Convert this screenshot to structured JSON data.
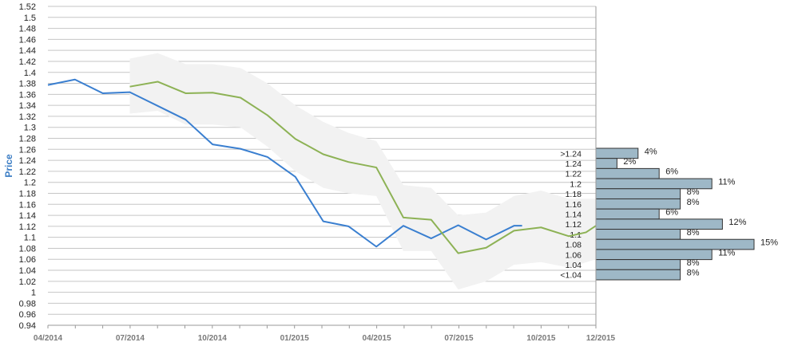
{
  "chart_data": {
    "type": "line",
    "ylabel": "Price",
    "ylim": [
      0.94,
      1.52
    ],
    "y_ticks": [
      "0.94",
      "0.96",
      "0.98",
      "1",
      "1.02",
      "1.04",
      "1.06",
      "1.08",
      "1.1",
      "1.12",
      "1.14",
      "1.16",
      "1.18",
      "1.2",
      "1.22",
      "1.24",
      "1.26",
      "1.28",
      "1.3",
      "1.32",
      "1.34",
      "1.36",
      "1.38",
      "1.4",
      "1.42",
      "1.44",
      "1.46",
      "1.48",
      "1.5",
      "1.52"
    ],
    "x_ticks": [
      "04/2014",
      "07/2014",
      "10/2014",
      "01/2015",
      "04/2015",
      "07/2015",
      "10/2015",
      "12/2015"
    ],
    "x_range": [
      "2014-04",
      "2015-12"
    ],
    "series": [
      {
        "color": "#3a7fd0",
        "points": [
          [
            "2014-04",
            1.377
          ],
          [
            "2014-05",
            1.387
          ],
          [
            "2014-06",
            1.362
          ],
          [
            "2014-07",
            1.364
          ],
          [
            "2014-08",
            1.339
          ],
          [
            "2014-09",
            1.314
          ],
          [
            "2014-10",
            1.269
          ],
          [
            "2014-11",
            1.261
          ],
          [
            "2014-12",
            1.246
          ],
          [
            "2015-01",
            1.21
          ],
          [
            "2015-02",
            1.129
          ],
          [
            "2015-03",
            1.12
          ],
          [
            "2015-04",
            1.083
          ],
          [
            "2015-05",
            1.121
          ],
          [
            "2015-06",
            1.098
          ],
          [
            "2015-07",
            1.122
          ],
          [
            "2015-08",
            1.096
          ],
          [
            "2015-09",
            1.121
          ],
          [
            "2015-09-10",
            1.121
          ]
        ]
      },
      {
        "color": "#8db255",
        "points": [
          [
            "2014-07",
            1.374
          ],
          [
            "2014-08",
            1.383
          ],
          [
            "2014-09",
            1.362
          ],
          [
            "2014-10",
            1.363
          ],
          [
            "2014-11",
            1.354
          ],
          [
            "2014-12",
            1.322
          ],
          [
            "2015-01",
            1.279
          ],
          [
            "2015-02",
            1.251
          ],
          [
            "2015-03",
            1.237
          ],
          [
            "2015-04",
            1.227
          ],
          [
            "2015-05",
            1.136
          ],
          [
            "2015-06",
            1.132
          ],
          [
            "2015-07",
            1.071
          ],
          [
            "2015-08",
            1.081
          ],
          [
            "2015-09",
            1.112
          ],
          [
            "2015-10",
            1.118
          ],
          [
            "2015-11",
            1.102
          ],
          [
            "2015-11-20",
            1.109
          ],
          [
            "2015-12",
            1.121
          ]
        ]
      }
    ],
    "band": {
      "color": "#f2f2f2",
      "upper": [
        [
          "2014-07",
          1.425
        ],
        [
          "2014-08",
          1.435
        ],
        [
          "2014-09",
          1.415
        ],
        [
          "2014-10",
          1.415
        ],
        [
          "2014-11",
          1.408
        ],
        [
          "2014-12",
          1.38
        ],
        [
          "2015-01",
          1.34
        ],
        [
          "2015-02",
          1.31
        ],
        [
          "2015-03",
          1.29
        ],
        [
          "2015-04",
          1.275
        ],
        [
          "2015-05",
          1.195
        ],
        [
          "2015-06",
          1.19
        ],
        [
          "2015-07",
          1.14
        ],
        [
          "2015-08",
          1.145
        ],
        [
          "2015-09",
          1.175
        ],
        [
          "2015-10",
          1.185
        ],
        [
          "2015-11",
          1.17
        ],
        [
          "2015-12",
          1.17
        ]
      ],
      "lower": [
        [
          "2014-07",
          1.325
        ],
        [
          "2014-08",
          1.33
        ],
        [
          "2014-09",
          1.305
        ],
        [
          "2014-10",
          1.305
        ],
        [
          "2014-11",
          1.3
        ],
        [
          "2014-12",
          1.265
        ],
        [
          "2015-01",
          1.22
        ],
        [
          "2015-02",
          1.19
        ],
        [
          "2015-03",
          1.18
        ],
        [
          "2015-04",
          1.175
        ],
        [
          "2015-05",
          1.075
        ],
        [
          "2015-06",
          1.075
        ],
        [
          "2015-07",
          1.005
        ],
        [
          "2015-08",
          1.02
        ],
        [
          "2015-09",
          1.05
        ],
        [
          "2015-10",
          1.055
        ],
        [
          "2015-11",
          1.045
        ],
        [
          "2015-12",
          1.06
        ]
      ]
    },
    "histogram": {
      "color": "#9eb8c7",
      "bins": [
        {
          "label": ">1.24",
          "pct": "4%",
          "value": 4
        },
        {
          "label": "1.24",
          "pct": "2%",
          "value": 2
        },
        {
          "label": "1.22",
          "pct": "6%",
          "value": 6
        },
        {
          "label": "1.2",
          "pct": "11%",
          "value": 11
        },
        {
          "label": "1.18",
          "pct": "8%",
          "value": 8
        },
        {
          "label": "1.16",
          "pct": "8%",
          "value": 8
        },
        {
          "label": "1.14",
          "pct": "6%",
          "value": 6
        },
        {
          "label": "1.12",
          "pct": "12%",
          "value": 12
        },
        {
          "label": "1.1",
          "pct": "8%",
          "value": 8
        },
        {
          "label": "1.08",
          "pct": "15%",
          "value": 15
        },
        {
          "label": "1.06",
          "pct": "11%",
          "value": 11
        },
        {
          "label": "1.04",
          "pct": "8%",
          "value": 8
        },
        {
          "label": "<1.04",
          "pct": "8%",
          "value": 8
        }
      ]
    }
  }
}
